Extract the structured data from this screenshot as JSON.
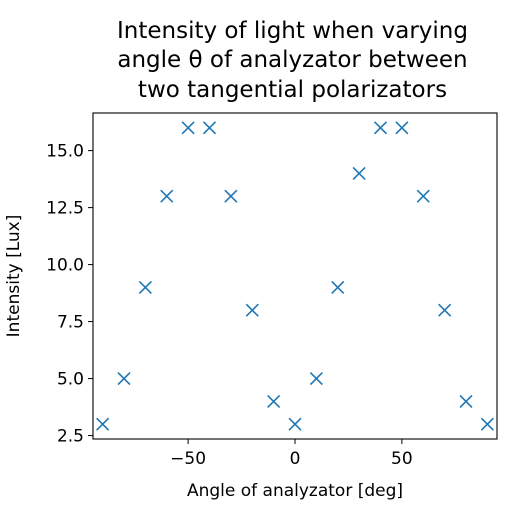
{
  "chart_data": {
    "type": "scatter",
    "title_lines": [
      "Intensity of light when varying",
      "angle θ of analyzator between",
      "two tangential polarizators"
    ],
    "xlabel": "Angle of analyzator [deg]",
    "ylabel": "Intensity [Lux]",
    "xlim": [
      -94.5,
      94.5
    ],
    "ylim": [
      2.35,
      16.65
    ],
    "xticks": [
      -50,
      0,
      50
    ],
    "xtick_labels": [
      "−50",
      "0",
      "50"
    ],
    "yticks": [
      2.5,
      5.0,
      7.5,
      10.0,
      12.5,
      15.0
    ],
    "ytick_labels": [
      "2.5",
      "5.0",
      "7.5",
      "10.0",
      "12.5",
      "15.0"
    ],
    "marker": "x",
    "marker_color": "#1f77b4",
    "grid": false,
    "series": [
      {
        "x": [
          -90,
          -80,
          -70,
          -60,
          -50,
          -40,
          -30,
          -20,
          -10,
          0,
          10,
          20,
          30,
          40,
          50,
          60,
          70,
          80,
          90
        ],
        "y": [
          3,
          5,
          9,
          13,
          16,
          16,
          13,
          8,
          4,
          3,
          5,
          9,
          14,
          16,
          16,
          13,
          8,
          4,
          3
        ]
      }
    ]
  }
}
